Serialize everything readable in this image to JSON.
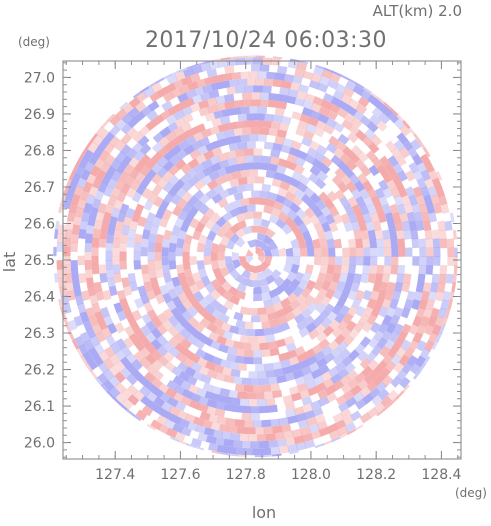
{
  "alt_label": "ALT(km) 2.0",
  "chart_data": {
    "type": "heatmap",
    "title": "2017/10/24 06:03:30",
    "subtitle": "ALT(km) 2.0",
    "xlabel": "lon",
    "ylabel": "lat",
    "x_unit": "(deg)",
    "y_unit": "(deg)",
    "xlim": [
      127.24,
      128.46
    ],
    "ylim": [
      25.955,
      27.045
    ],
    "x_ticks": [
      127.4,
      127.6,
      127.8,
      128.0,
      128.2,
      128.4
    ],
    "x_tick_labels": [
      "127.4",
      "127.6",
      "127.8",
      "128.0",
      "128.2",
      "128.4"
    ],
    "y_ticks": [
      26.0,
      26.1,
      26.2,
      26.3,
      26.4,
      26.5,
      26.6,
      26.7,
      26.8,
      26.9,
      27.0
    ],
    "y_tick_labels": [
      "26.0",
      "26.1",
      "26.2",
      "26.3",
      "26.4",
      "26.5",
      "26.6",
      "26.7",
      "26.8",
      "26.9",
      "27.0"
    ],
    "center": {
      "lon": 127.83,
      "lat": 26.51
    },
    "radius_lon": 0.62,
    "radius_lat": 0.55,
    "positive_color": "#f4a6a6",
    "negative_color": "#a6a6f4",
    "grid": false
  }
}
